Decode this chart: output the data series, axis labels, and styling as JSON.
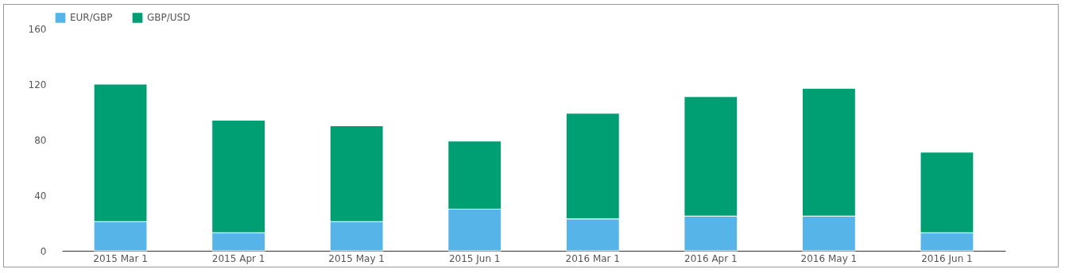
{
  "chart_data": {
    "type": "bar",
    "stacked": true,
    "categories": [
      "2015 Mar 1",
      "2015 Apr 1",
      "2015 May 1",
      "2015 Jun 1",
      "2016 Mar 1",
      "2016 Apr 1",
      "2016 May 1",
      "2016 Jun 1"
    ],
    "series": [
      {
        "name": "EUR/GBP",
        "color": "#56b4e9",
        "values": [
          21,
          13,
          21,
          30,
          23,
          25,
          25,
          13
        ]
      },
      {
        "name": "GBP/USD",
        "color": "#009e73",
        "values": [
          99,
          81,
          69,
          49,
          76,
          86,
          92,
          58
        ]
      }
    ],
    "ylim": [
      0,
      160
    ],
    "yticks": [
      0,
      40,
      80,
      120,
      160
    ],
    "grid": false,
    "legend": "top left"
  }
}
